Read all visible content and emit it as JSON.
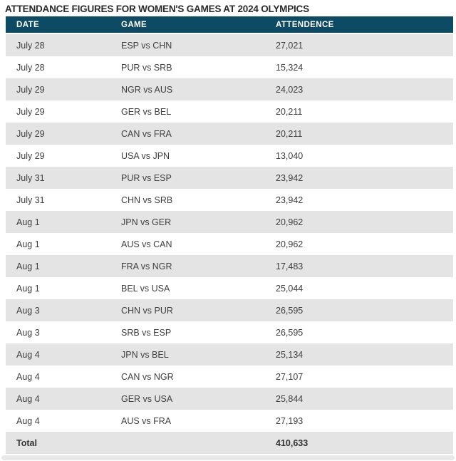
{
  "title": "ATTENDANCE FIGURES FOR WOMEN'S GAMES AT 2024 OLYMPICS",
  "table": {
    "columns": [
      "DATE",
      "GAME",
      "ATTENDENCE"
    ],
    "rows": [
      {
        "date": "July 28",
        "game": "ESP vs CHN",
        "attendance": "27,021"
      },
      {
        "date": "July 28",
        "game": "PUR vs SRB",
        "attendance": "15,324"
      },
      {
        "date": "July 29",
        "game": "NGR vs AUS",
        "attendance": "24,023"
      },
      {
        "date": "July 29",
        "game": "GER vs BEL",
        "attendance": "20,211"
      },
      {
        "date": "July 29",
        "game": "CAN vs FRA",
        "attendance": "20,211"
      },
      {
        "date": "July 29",
        "game": "USA vs JPN",
        "attendance": "13,040"
      },
      {
        "date": "July 31",
        "game": "PUR vs ESP",
        "attendance": "23,942"
      },
      {
        "date": "July 31",
        "game": "CHN vs SRB",
        "attendance": "23,942"
      },
      {
        "date": "Aug 1",
        "game": "JPN vs GER",
        "attendance": "20,962"
      },
      {
        "date": "Aug 1",
        "game": "AUS vs CAN",
        "attendance": "20,962"
      },
      {
        "date": "Aug 1",
        "game": "FRA vs NGR",
        "attendance": "17,483"
      },
      {
        "date": "Aug 1",
        "game": "BEL vs USA",
        "attendance": "25,044"
      },
      {
        "date": "Aug 3",
        "game": "CHN vs PUR",
        "attendance": "26,595"
      },
      {
        "date": "Aug 3",
        "game": "SRB vs ESP",
        "attendance": "26,595"
      },
      {
        "date": "Aug 4",
        "game": "JPN vs BEL",
        "attendance": "25,134"
      },
      {
        "date": "Aug 4",
        "game": "CAN vs NGR",
        "attendance": "27,107"
      },
      {
        "date": "Aug 4",
        "game": "GER vs USA",
        "attendance": "25,844"
      },
      {
        "date": "Aug 4",
        "game": "AUS vs FRA",
        "attendance": "27,193"
      }
    ],
    "total": {
      "label": "Total",
      "value": "410,633"
    }
  },
  "colors": {
    "header_bg": "#0d4a63",
    "header_text": "#ffffff",
    "alt_row_bg": "#e4e4e4",
    "row_bg": "#ffffff",
    "body_text": "#3f3f3f",
    "title_text": "#2a2a2a",
    "bottom_strip": "#e8e8e8"
  },
  "chart_data": {
    "type": "table",
    "title": "ATTENDANCE FIGURES FOR WOMEN'S GAMES AT 2024 OLYMPICS",
    "columns": [
      "DATE",
      "GAME",
      "ATTENDENCE"
    ],
    "rows": [
      [
        "July 28",
        "ESP vs CHN",
        27021
      ],
      [
        "July 28",
        "PUR vs SRB",
        15324
      ],
      [
        "July 29",
        "NGR vs AUS",
        24023
      ],
      [
        "July 29",
        "GER vs BEL",
        20211
      ],
      [
        "July 29",
        "CAN vs FRA",
        20211
      ],
      [
        "July 29",
        "USA vs JPN",
        13040
      ],
      [
        "July 31",
        "PUR vs ESP",
        23942
      ],
      [
        "July 31",
        "CHN vs SRB",
        23942
      ],
      [
        "Aug 1",
        "JPN vs GER",
        20962
      ],
      [
        "Aug 1",
        "AUS vs CAN",
        20962
      ],
      [
        "Aug 1",
        "FRA vs NGR",
        17483
      ],
      [
        "Aug 1",
        "BEL vs USA",
        25044
      ],
      [
        "Aug 3",
        "CHN vs PUR",
        26595
      ],
      [
        "Aug 3",
        "SRB vs ESP",
        26595
      ],
      [
        "Aug 4",
        "JPN vs BEL",
        25134
      ],
      [
        "Aug 4",
        "CAN vs NGR",
        27107
      ],
      [
        "Aug 4",
        "GER vs USA",
        25844
      ],
      [
        "Aug 4",
        "AUS vs FRA",
        27193
      ]
    ],
    "total_row": [
      "Total",
      "",
      410633
    ]
  }
}
